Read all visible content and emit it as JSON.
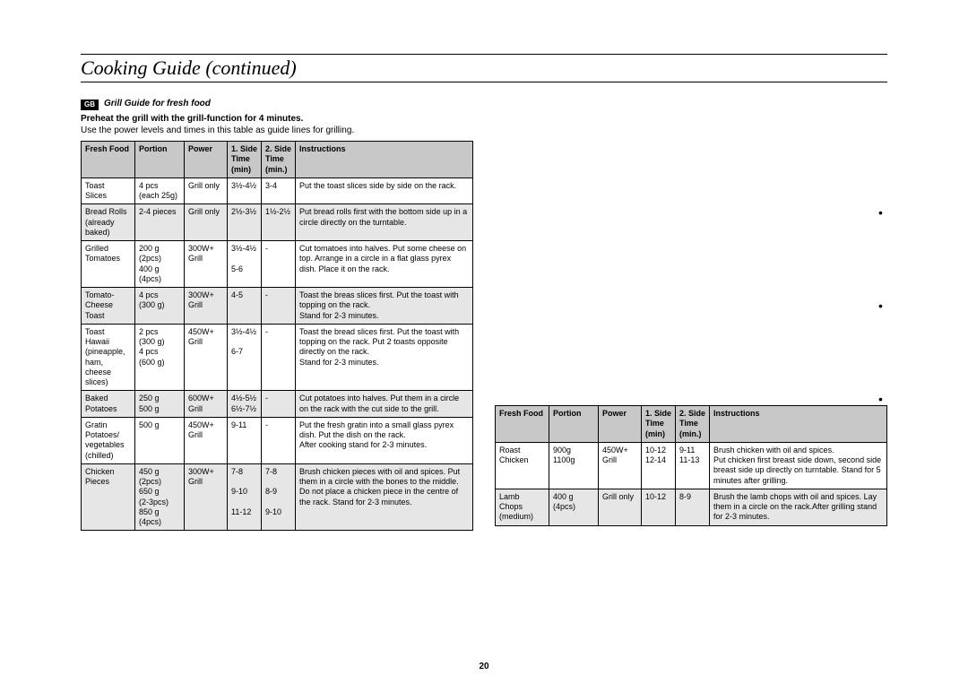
{
  "page": {
    "title": "Cooking Guide (continued)",
    "number": "20"
  },
  "gb_label": "GB",
  "section": {
    "title": "Grill Guide for fresh food",
    "preheat": "Preheat the grill with the grill-function for 4 minutes.",
    "note": "Use the power levels and times in this table as guide lines for grilling."
  },
  "headers": {
    "food": "Fresh Food",
    "portion": "Portion",
    "power": "Power",
    "t1a": "1. Side",
    "t1b": "Time",
    "t1c": "(min)",
    "t2a": "2. Side",
    "t2b": "Time",
    "t2c": "(min.)",
    "instr": "Instructions"
  },
  "rows_left": [
    {
      "food": "Toast\nSlices",
      "portion": "4 pcs\n(each 25g)",
      "power": "Grill only",
      "t1": "3½-4½",
      "t2": "3-4",
      "instr": "Put the toast slices side by side on the rack."
    },
    {
      "food": "Bread Rolls\n(already\nbaked)",
      "portion": "2-4 pieces",
      "power": "Grill only",
      "t1": "2½-3½",
      "t2": "1½-2½",
      "instr": "Put bread rolls first with the bottom side up in a circle directly on the turntable."
    },
    {
      "food": "Grilled\nTomatoes",
      "portion": "200 g\n(2pcs)\n400 g\n(4pcs)",
      "power": "300W+\nGrill",
      "t1": "3½-4½\n\n5-6",
      "t2": "-",
      "instr": "Cut tomatoes into halves. Put some cheese on top. Arrange in a circle in a flat glass pyrex dish. Place it on the rack."
    },
    {
      "food": "Tomato-\nCheese\nToast",
      "portion": "4 pcs\n(300 g)",
      "power": "300W+\nGrill",
      "t1": "4-5",
      "t2": "-",
      "instr": "Toast the breas slices first. Put the toast with topping on the rack.\nStand for 2-3 minutes."
    },
    {
      "food": "Toast\nHawaii\n(pineapple,\nham,\ncheese\nslices)",
      "portion": "2 pcs\n(300 g)\n4 pcs\n(600 g)",
      "power": "450W+\nGrill",
      "t1": "3½-4½\n\n6-7",
      "t2": "-",
      "instr": "Toast the bread slices first. Put the toast with topping on the rack. Put 2 toasts opposite directly on the rack.\nStand for 2-3 minutes."
    },
    {
      "food": "Baked\nPotatoes",
      "portion": "250 g\n500 g",
      "power": "600W+\nGrill",
      "t1": "4½-5½\n6½-7½",
      "t2": "-",
      "instr": "Cut potatoes into halves. Put them in a circle on the rack with the cut side to the grill."
    },
    {
      "food": "Gratin\nPotatoes/\nvegetables\n(chilled)",
      "portion": "500 g",
      "power": "450W+\nGrill",
      "t1": "9-11",
      "t2": "-",
      "instr": "Put the fresh gratin into a small glass pyrex dish. Put the dish on the rack.\nAfter cooking stand for 2-3 minutes."
    },
    {
      "food": "Chicken\nPieces",
      "portion": "450 g\n(2pcs)\n650 g\n(2-3pcs)\n850 g\n(4pcs)",
      "power": "300W+\nGrill",
      "t1": "7-8\n\n9-10\n\n11-12",
      "t2": "7-8\n\n8-9\n\n9-10",
      "instr": "Brush chicken pieces with oil and spices. Put them in a circle with the bones to the middle. Do not place a chicken piece in the centre of the rack. Stand for 2-3 minutes."
    }
  ],
  "rows_right": [
    {
      "food": "Roast\nChicken",
      "portion": "900g\n1100g",
      "power": "450W+\nGrill",
      "t1": "10-12\n12-14",
      "t2": "9-11\n11-13",
      "instr": "Brush chicken with oil and spices.\nPut chicken first breast side down, second side breast side up directly on turntable. Stand for 5 minutes after grilling."
    },
    {
      "food": "Lamb\nChops\n(medium)",
      "portion": "400 g\n(4pcs)",
      "power": "Grill only",
      "t1": "10-12",
      "t2": "8-9",
      "instr": "Brush the lamb chops with oil and spices. Lay them in a circle on the rack.After grilling stand for 2-3 minutes."
    }
  ],
  "style": {
    "header_bg": "#c8c8c8",
    "row_odd_bg": "#ffffff",
    "row_even_bg": "#e6e6e6",
    "border": "#000000"
  }
}
